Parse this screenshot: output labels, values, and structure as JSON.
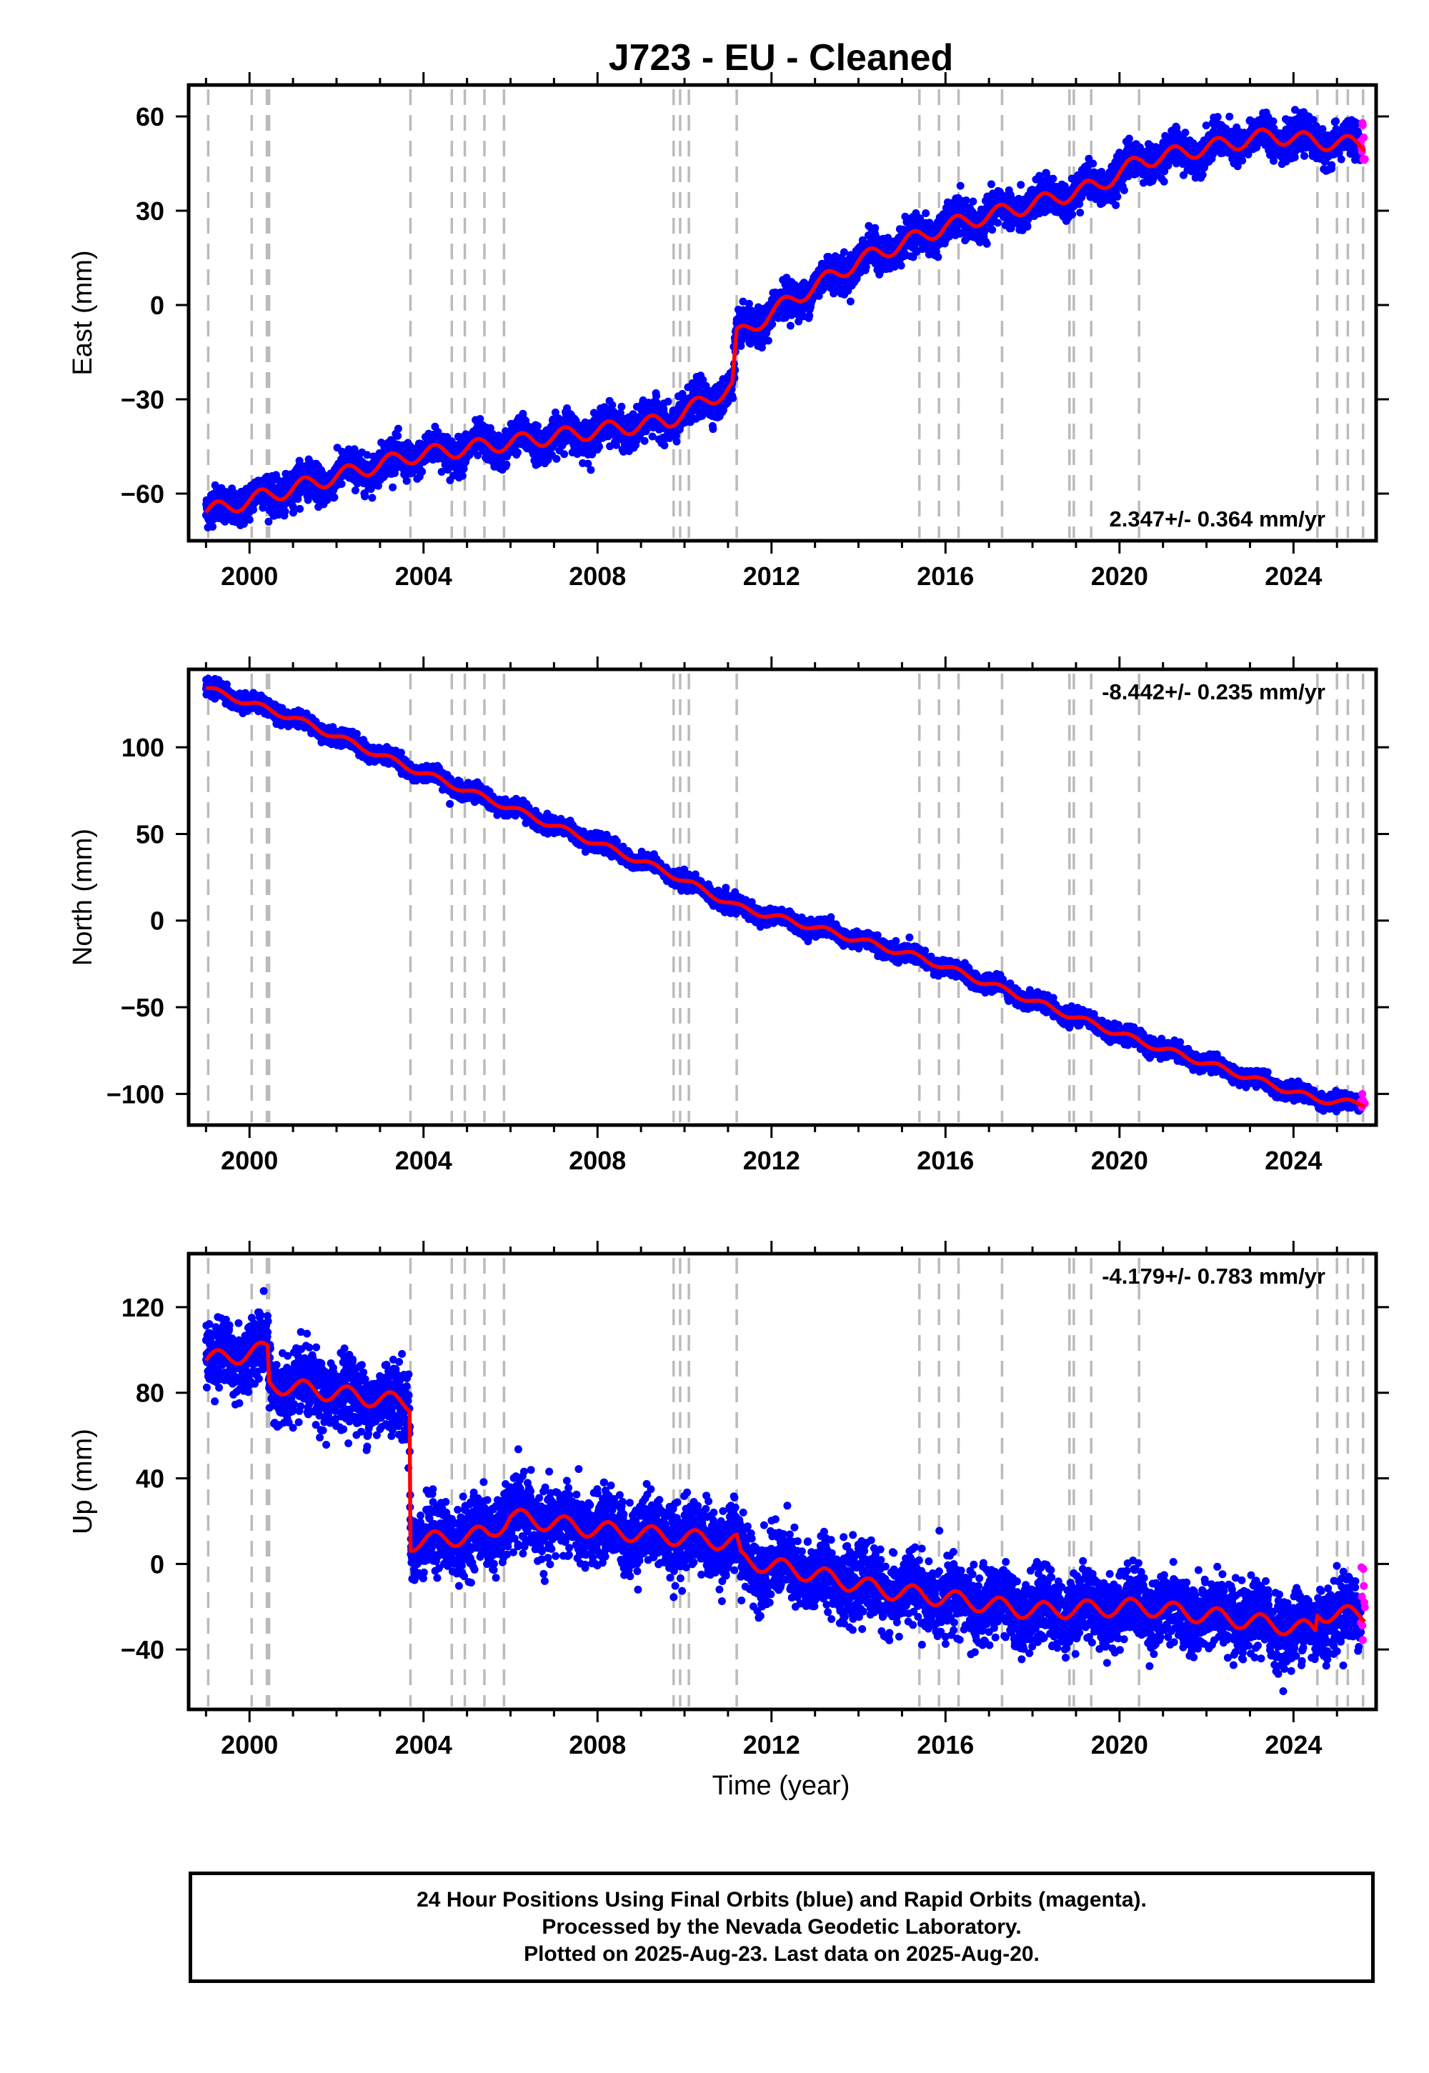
{
  "title": "J723  - EU - Cleaned",
  "xaxis_label": "Time (year)",
  "colors": {
    "final": "#0000ff",
    "rapid": "#ff00ff",
    "model": "#ff0000",
    "offset": "#bbbbbb"
  },
  "chart_data": {
    "type": "scatter",
    "x_range": [
      1998.6,
      2025.9
    ],
    "x_ticks": [
      2000,
      2004,
      2008,
      2012,
      2016,
      2020,
      2024
    ],
    "offset_lines": [
      1999.05,
      2000.05,
      2000.4,
      2000.45,
      2003.7,
      2004.65,
      2004.95,
      2005.4,
      2005.85,
      2009.75,
      2009.9,
      2010.1,
      2011.2,
      2015.4,
      2015.85,
      2016.3,
      2017.3,
      2018.85,
      2018.95,
      2019.35,
      2020.45,
      2024.55,
      2025.0,
      2025.25,
      2025.6
    ],
    "last_final": 2025.55,
    "last_data": 2025.64,
    "panels": [
      {
        "component": "east",
        "ylabel": "East (mm)",
        "ylim": [
          -75,
          70
        ],
        "yticks": [
          -60,
          -30,
          0,
          30,
          60
        ],
        "rate_text": "2.347+/- 0.364 mm/yr",
        "rate_pos": "bottom-right",
        "noise_mm": 2.7,
        "seasonal_mm": 2.5,
        "model": [
          [
            1999.0,
            -66
          ],
          [
            2003.7,
            -48
          ],
          [
            2009.6,
            -37
          ],
          [
            2011.1,
            -26
          ],
          [
            2011.2,
            -10
          ],
          [
            2012.5,
            2
          ],
          [
            2014,
            14
          ],
          [
            2016,
            25
          ],
          [
            2018,
            32
          ],
          [
            2019.5,
            38
          ],
          [
            2020.5,
            46
          ],
          [
            2022,
            50
          ],
          [
            2023.5,
            54
          ],
          [
            2024.5,
            52
          ],
          [
            2025.6,
            51
          ]
        ],
        "rapid_range": [
          46,
          58
        ]
      },
      {
        "component": "north",
        "ylabel": "North (mm)",
        "ylim": [
          -118,
          145
        ],
        "yticks": [
          -100,
          -50,
          0,
          50,
          100
        ],
        "rate_text": "-8.442+/- 0.235 mm/yr",
        "rate_pos": "top-right",
        "noise_mm": 2.2,
        "seasonal_mm": 1.8,
        "model": [
          [
            1999.0,
            134
          ],
          [
            2001,
            117
          ],
          [
            2003.7,
            88
          ],
          [
            2006,
            65
          ],
          [
            2009.6,
            28
          ],
          [
            2011.2,
            8
          ],
          [
            2013,
            -4
          ],
          [
            2015.5,
            -22
          ],
          [
            2018.9,
            -55
          ],
          [
            2020.5,
            -70
          ],
          [
            2024.5,
            -103
          ],
          [
            2025.6,
            -106
          ]
        ],
        "rapid_range": [
          -108,
          -99
        ]
      },
      {
        "component": "up",
        "ylabel": "Up (mm)",
        "ylim": [
          -68,
          145
        ],
        "yticks": [
          -40,
          0,
          40,
          80,
          120
        ],
        "rate_text": "-4.179+/- 0.783 mm/yr",
        "rate_pos": "top-right",
        "noise_mm": 8,
        "seasonal_mm": 4,
        "model": [
          [
            1999.0,
            95
          ],
          [
            2000.42,
            100
          ],
          [
            2000.45,
            84
          ],
          [
            2003.68,
            75
          ],
          [
            2003.7,
            10
          ],
          [
            2005.5,
            14
          ],
          [
            2006,
            22
          ],
          [
            2008,
            16
          ],
          [
            2011.2,
            10
          ],
          [
            2011.3,
            2
          ],
          [
            2012.8,
            -4
          ],
          [
            2014.5,
            -12
          ],
          [
            2016,
            -16
          ],
          [
            2018,
            -22
          ],
          [
            2020.5,
            -20
          ],
          [
            2022,
            -24
          ],
          [
            2024.5,
            -31
          ],
          [
            2024.55,
            -23
          ],
          [
            2025.6,
            -24
          ]
        ],
        "rapid_range": [
          -36,
          0
        ]
      }
    ]
  },
  "footer": {
    "line1": "24 Hour Positions Using Final Orbits (blue) and Rapid Orbits (magenta).",
    "line2": "Processed by the Nevada Geodetic Laboratory.",
    "line3": "Plotted on 2025-Aug-23. Last data on 2025-Aug-20."
  }
}
